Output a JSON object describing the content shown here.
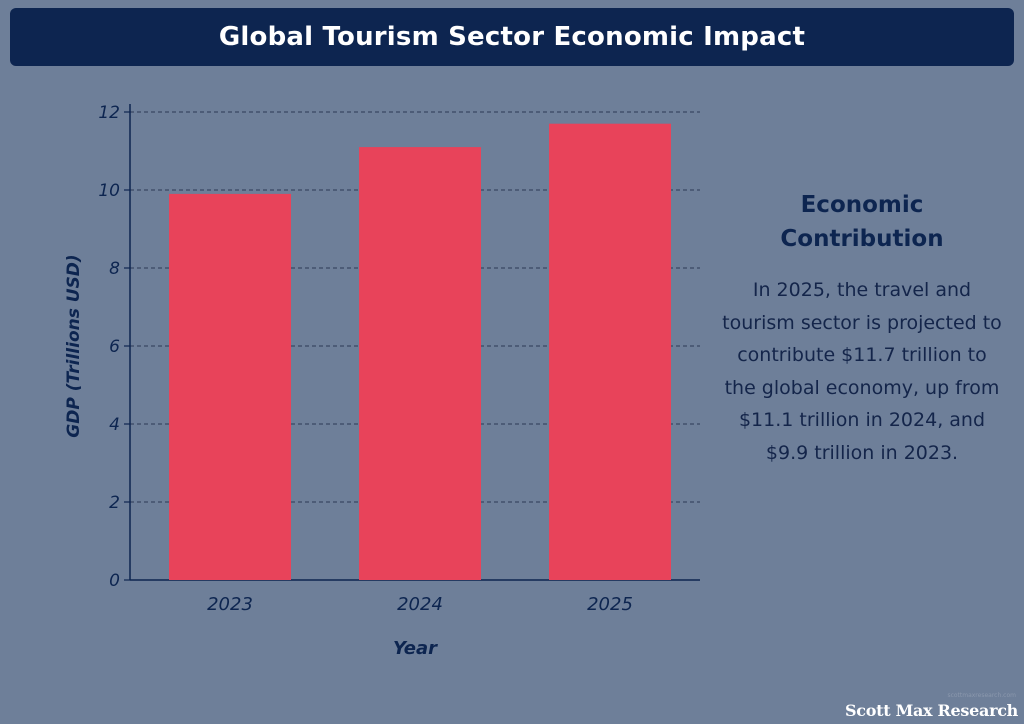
{
  "header": {
    "title": "Global Tourism Sector Economic Impact"
  },
  "side_panel": {
    "heading": "Economic Contribution",
    "body": "In 2025, the travel and tourism sector is projected to contribute $11.7 trillion to the global economy, up from $11.1 trillion in 2024, and $9.9 trillion in 2023."
  },
  "footer": {
    "brand": "Scott Max Research",
    "source_small": "scottmaxresearch.com"
  },
  "colors": {
    "background": "#6e7f99",
    "header_bg": "#0d2550",
    "bar": "#e8435a",
    "text_dark": "#0d2550"
  },
  "chart_data": {
    "type": "bar",
    "title": "Global Tourism Sector Economic Impact",
    "categories": [
      "2023",
      "2024",
      "2025"
    ],
    "values": [
      9.9,
      11.1,
      11.7
    ],
    "xlabel": "Year",
    "ylabel": "GDP (Trillions USD)",
    "ylim": [
      0,
      12
    ],
    "yticks": [
      0,
      2,
      4,
      6,
      8,
      10,
      12
    ],
    "ytick_labels": [
      "0",
      "2",
      "4",
      "6",
      "8",
      "10",
      "12"
    ],
    "grid": true,
    "grid_style": "dashed",
    "legend": "none"
  }
}
